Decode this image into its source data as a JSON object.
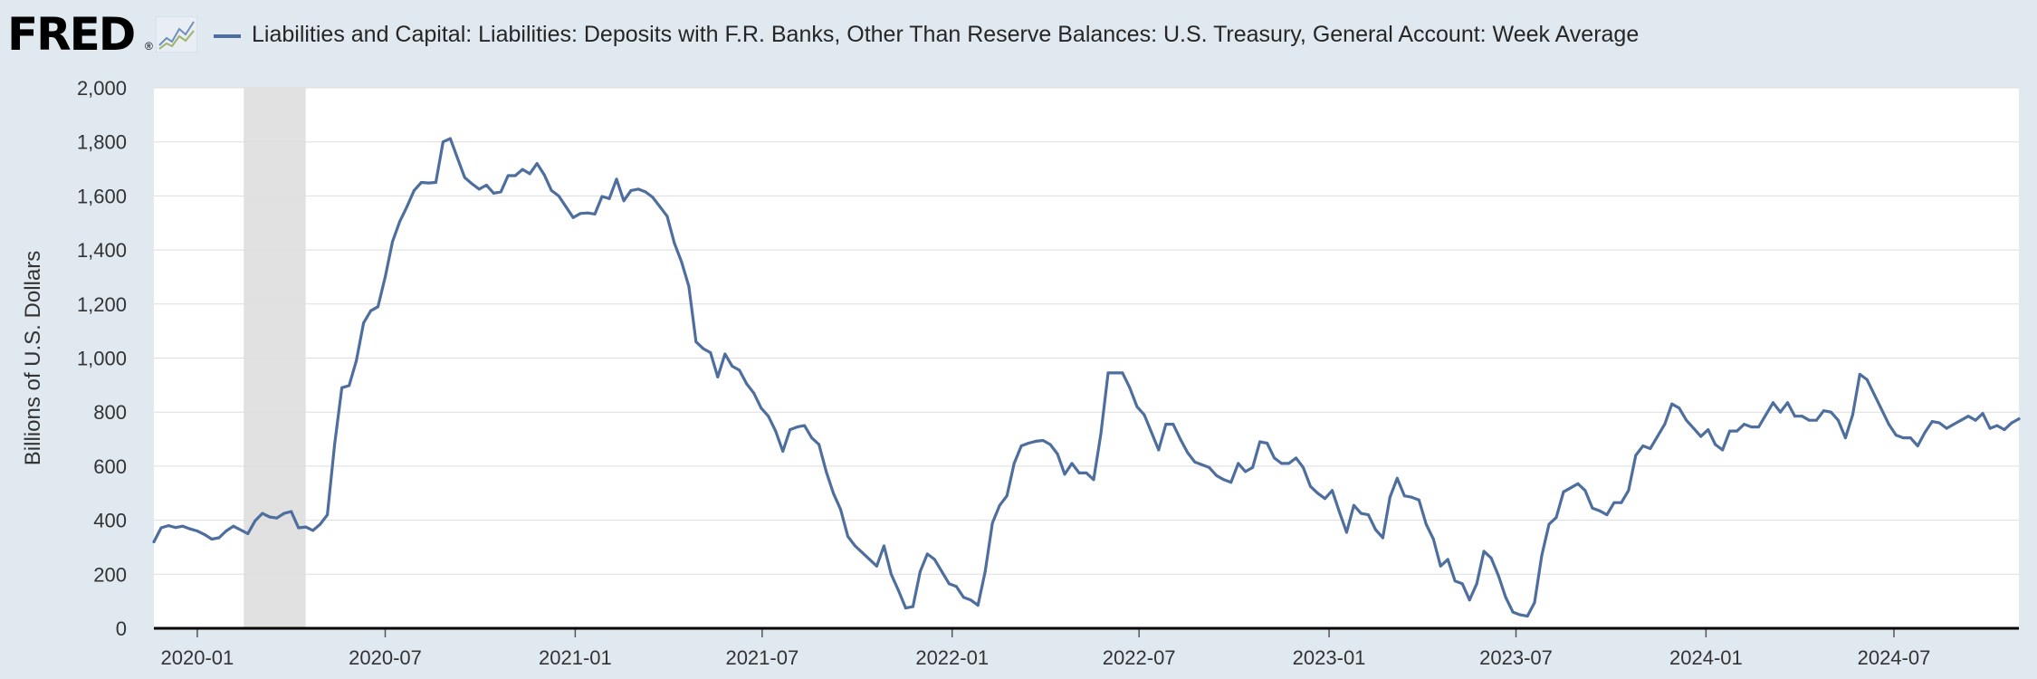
{
  "brand": {
    "logo_text": "FRED",
    "registered_mark": "®",
    "icon": "line-chart-icon"
  },
  "colors": {
    "series": "#4e6e9e",
    "background": "#e1e9f0",
    "plot": "#ffffff",
    "recession": "#e1e1e1",
    "grid": "#dddddd",
    "axis": "#000000",
    "text": "#333333"
  },
  "chart_data": {
    "type": "line",
    "title": "",
    "xlabel": "",
    "ylabel": "Billions of U.S. Dollars",
    "ylim": [
      0,
      2000
    ],
    "xlim": [
      "2019-11-20",
      "2024-10-30"
    ],
    "grid": true,
    "yticks": [
      "0",
      "200",
      "400",
      "600",
      "800",
      "1,000",
      "1,200",
      "1,400",
      "1,600",
      "1,800",
      "2,000"
    ],
    "xticks": [
      "2020-01",
      "2020-07",
      "2021-01",
      "2021-07",
      "2022-01",
      "2022-07",
      "2023-01",
      "2023-07",
      "2024-01",
      "2024-07"
    ],
    "legend_position": "top-left",
    "shaded_regions": [
      {
        "start": "2020-02-15",
        "end": "2020-04-15"
      }
    ],
    "series": [
      {
        "name": "Liabilities and Capital: Liabilities: Deposits with F.R. Banks, Other Than Reserve Balances: U.S. Treasury, General Account: Week Average",
        "color": "#4e6e9e",
        "points": [
          [
            "2019-11-20",
            320
          ],
          [
            "2019-11-27",
            372
          ],
          [
            "2019-12-04",
            380
          ],
          [
            "2019-12-11",
            373
          ],
          [
            "2019-12-18",
            378
          ],
          [
            "2019-12-25",
            368
          ],
          [
            "2020-01-01",
            360
          ],
          [
            "2020-01-08",
            347
          ],
          [
            "2020-01-15",
            330
          ],
          [
            "2020-01-22",
            335
          ],
          [
            "2020-01-29",
            360
          ],
          [
            "2020-02-05",
            378
          ],
          [
            "2020-02-19",
            350
          ],
          [
            "2020-02-26",
            398
          ],
          [
            "2020-03-04",
            425
          ],
          [
            "2020-03-11",
            412
          ],
          [
            "2020-03-18",
            408
          ],
          [
            "2020-03-25",
            425
          ],
          [
            "2020-04-01",
            432
          ],
          [
            "2020-04-08",
            372
          ],
          [
            "2020-04-15",
            375
          ],
          [
            "2020-04-22",
            362
          ],
          [
            "2020-04-29",
            385
          ],
          [
            "2020-05-06",
            420
          ],
          [
            "2020-05-13",
            680
          ],
          [
            "2020-05-20",
            890
          ],
          [
            "2020-05-27",
            898
          ],
          [
            "2020-06-03",
            990
          ],
          [
            "2020-06-10",
            1130
          ],
          [
            "2020-06-17",
            1175
          ],
          [
            "2020-06-24",
            1190
          ],
          [
            "2020-07-01",
            1300
          ],
          [
            "2020-07-08",
            1430
          ],
          [
            "2020-07-15",
            1505
          ],
          [
            "2020-07-22",
            1560
          ],
          [
            "2020-07-29",
            1620
          ],
          [
            "2020-08-05",
            1650
          ],
          [
            "2020-08-12",
            1648
          ],
          [
            "2020-08-19",
            1650
          ],
          [
            "2020-08-26",
            1800
          ],
          [
            "2020-09-02",
            1812
          ],
          [
            "2020-09-09",
            1740
          ],
          [
            "2020-09-16",
            1668
          ],
          [
            "2020-09-23",
            1645
          ],
          [
            "2020-09-30",
            1625
          ],
          [
            "2020-10-07",
            1640
          ],
          [
            "2020-10-14",
            1610
          ],
          [
            "2020-10-21",
            1615
          ],
          [
            "2020-10-28",
            1675
          ],
          [
            "2020-11-04",
            1675
          ],
          [
            "2020-11-11",
            1698
          ],
          [
            "2020-11-18",
            1682
          ],
          [
            "2020-11-25",
            1720
          ],
          [
            "2020-12-02",
            1678
          ],
          [
            "2020-12-09",
            1620
          ],
          [
            "2020-12-16",
            1600
          ],
          [
            "2020-12-23",
            1560
          ],
          [
            "2020-12-30",
            1520
          ],
          [
            "2021-01-06",
            1535
          ],
          [
            "2021-01-13",
            1537
          ],
          [
            "2021-01-20",
            1533
          ],
          [
            "2021-01-27",
            1598
          ],
          [
            "2021-02-03",
            1590
          ],
          [
            "2021-02-10",
            1662
          ],
          [
            "2021-02-17",
            1582
          ],
          [
            "2021-02-24",
            1620
          ],
          [
            "2021-03-03",
            1625
          ],
          [
            "2021-03-10",
            1615
          ],
          [
            "2021-03-17",
            1595
          ],
          [
            "2021-03-24",
            1560
          ],
          [
            "2021-03-31",
            1525
          ],
          [
            "2021-04-07",
            1425
          ],
          [
            "2021-04-14",
            1355
          ],
          [
            "2021-04-21",
            1265
          ],
          [
            "2021-04-28",
            1060
          ],
          [
            "2021-05-05",
            1035
          ],
          [
            "2021-05-12",
            1020
          ],
          [
            "2021-05-19",
            930
          ],
          [
            "2021-05-26",
            1015
          ],
          [
            "2021-06-02",
            970
          ],
          [
            "2021-06-09",
            955
          ],
          [
            "2021-06-16",
            905
          ],
          [
            "2021-06-23",
            870
          ],
          [
            "2021-06-30",
            815
          ],
          [
            "2021-07-07",
            785
          ],
          [
            "2021-07-14",
            730
          ],
          [
            "2021-07-21",
            655
          ],
          [
            "2021-07-28",
            735
          ],
          [
            "2021-08-04",
            745
          ],
          [
            "2021-08-11",
            750
          ],
          [
            "2021-08-18",
            705
          ],
          [
            "2021-08-25",
            680
          ],
          [
            "2021-09-01",
            580
          ],
          [
            "2021-09-08",
            500
          ],
          [
            "2021-09-15",
            440
          ],
          [
            "2021-09-22",
            340
          ],
          [
            "2021-09-29",
            305
          ],
          [
            "2021-10-06",
            280
          ],
          [
            "2021-10-13",
            255
          ],
          [
            "2021-10-20",
            230
          ],
          [
            "2021-10-27",
            305
          ],
          [
            "2021-11-03",
            200
          ],
          [
            "2021-11-10",
            140
          ],
          [
            "2021-11-17",
            75
          ],
          [
            "2021-11-24",
            80
          ],
          [
            "2021-12-01",
            210
          ],
          [
            "2021-12-08",
            275
          ],
          [
            "2021-12-15",
            255
          ],
          [
            "2021-12-22",
            210
          ],
          [
            "2021-12-29",
            165
          ],
          [
            "2022-01-05",
            155
          ],
          [
            "2022-01-12",
            115
          ],
          [
            "2022-01-19",
            105
          ],
          [
            "2022-01-26",
            85
          ],
          [
            "2022-02-02",
            210
          ],
          [
            "2022-02-09",
            390
          ],
          [
            "2022-02-16",
            455
          ],
          [
            "2022-02-23",
            490
          ],
          [
            "2022-03-02",
            610
          ],
          [
            "2022-03-09",
            675
          ],
          [
            "2022-03-16",
            685
          ],
          [
            "2022-03-23",
            692
          ],
          [
            "2022-03-30",
            695
          ],
          [
            "2022-04-06",
            680
          ],
          [
            "2022-04-13",
            645
          ],
          [
            "2022-04-20",
            570
          ],
          [
            "2022-04-27",
            610
          ],
          [
            "2022-05-04",
            575
          ],
          [
            "2022-05-11",
            575
          ],
          [
            "2022-05-18",
            550
          ],
          [
            "2022-05-25",
            720
          ],
          [
            "2022-06-01",
            945
          ],
          [
            "2022-06-08",
            945
          ],
          [
            "2022-06-15",
            945
          ],
          [
            "2022-06-22",
            890
          ],
          [
            "2022-06-29",
            820
          ],
          [
            "2022-07-06",
            790
          ],
          [
            "2022-07-13",
            725
          ],
          [
            "2022-07-20",
            660
          ],
          [
            "2022-07-27",
            755
          ],
          [
            "2022-08-03",
            755
          ],
          [
            "2022-08-10",
            700
          ],
          [
            "2022-08-17",
            650
          ],
          [
            "2022-08-24",
            615
          ],
          [
            "2022-08-31",
            605
          ],
          [
            "2022-09-07",
            595
          ],
          [
            "2022-09-14",
            565
          ],
          [
            "2022-09-21",
            550
          ],
          [
            "2022-09-28",
            540
          ],
          [
            "2022-10-05",
            610
          ],
          [
            "2022-10-12",
            580
          ],
          [
            "2022-10-19",
            595
          ],
          [
            "2022-10-26",
            690
          ],
          [
            "2022-11-02",
            685
          ],
          [
            "2022-11-09",
            630
          ],
          [
            "2022-11-16",
            610
          ],
          [
            "2022-11-23",
            610
          ],
          [
            "2022-11-30",
            630
          ],
          [
            "2022-12-07",
            595
          ],
          [
            "2022-12-14",
            525
          ],
          [
            "2022-12-21",
            500
          ],
          [
            "2022-12-28",
            480
          ],
          [
            "2023-01-04",
            510
          ],
          [
            "2023-01-11",
            430
          ],
          [
            "2023-01-18",
            355
          ],
          [
            "2023-01-25",
            455
          ],
          [
            "2023-02-01",
            425
          ],
          [
            "2023-02-08",
            420
          ],
          [
            "2023-02-15",
            365
          ],
          [
            "2023-02-22",
            335
          ],
          [
            "2023-03-01",
            485
          ],
          [
            "2023-03-08",
            555
          ],
          [
            "2023-03-15",
            490
          ],
          [
            "2023-03-22",
            485
          ],
          [
            "2023-03-29",
            475
          ],
          [
            "2023-04-05",
            385
          ],
          [
            "2023-04-12",
            330
          ],
          [
            "2023-04-19",
            230
          ],
          [
            "2023-04-26",
            255
          ],
          [
            "2023-05-03",
            175
          ],
          [
            "2023-05-10",
            165
          ],
          [
            "2023-05-17",
            105
          ],
          [
            "2023-05-24",
            165
          ],
          [
            "2023-05-31",
            285
          ],
          [
            "2023-06-07",
            260
          ],
          [
            "2023-06-14",
            195
          ],
          [
            "2023-06-21",
            115
          ],
          [
            "2023-06-28",
            60
          ],
          [
            "2023-07-05",
            50
          ],
          [
            "2023-07-12",
            45
          ],
          [
            "2023-07-19",
            95
          ],
          [
            "2023-07-26",
            270
          ],
          [
            "2023-08-02",
            385
          ],
          [
            "2023-08-09",
            410
          ],
          [
            "2023-08-16",
            505
          ],
          [
            "2023-08-23",
            520
          ],
          [
            "2023-08-30",
            535
          ],
          [
            "2023-09-06",
            510
          ],
          [
            "2023-09-13",
            445
          ],
          [
            "2023-09-20",
            435
          ],
          [
            "2023-09-27",
            420
          ],
          [
            "2023-10-04",
            465
          ],
          [
            "2023-10-11",
            465
          ],
          [
            "2023-10-18",
            510
          ],
          [
            "2023-10-25",
            640
          ],
          [
            "2023-11-01",
            675
          ],
          [
            "2023-11-08",
            665
          ],
          [
            "2023-11-15",
            710
          ],
          [
            "2023-11-22",
            755
          ],
          [
            "2023-11-29",
            830
          ],
          [
            "2023-12-06",
            815
          ],
          [
            "2023-12-13",
            770
          ],
          [
            "2023-12-20",
            740
          ],
          [
            "2023-12-27",
            710
          ],
          [
            "2024-01-03",
            735
          ],
          [
            "2024-01-10",
            680
          ],
          [
            "2024-01-17",
            660
          ],
          [
            "2024-01-24",
            730
          ],
          [
            "2024-01-31",
            730
          ],
          [
            "2024-02-07",
            755
          ],
          [
            "2024-02-14",
            745
          ],
          [
            "2024-02-21",
            745
          ],
          [
            "2024-02-28",
            790
          ],
          [
            "2024-03-06",
            835
          ],
          [
            "2024-03-13",
            800
          ],
          [
            "2024-03-20",
            835
          ],
          [
            "2024-03-27",
            785
          ],
          [
            "2024-04-03",
            785
          ],
          [
            "2024-04-10",
            770
          ],
          [
            "2024-04-17",
            770
          ],
          [
            "2024-04-24",
            805
          ],
          [
            "2024-05-01",
            800
          ],
          [
            "2024-05-08",
            770
          ],
          [
            "2024-05-15",
            705
          ],
          [
            "2024-05-22",
            790
          ],
          [
            "2024-05-29",
            940
          ],
          [
            "2024-06-05",
            920
          ],
          [
            "2024-06-12",
            865
          ],
          [
            "2024-06-19",
            810
          ],
          [
            "2024-06-26",
            755
          ],
          [
            "2024-07-03",
            715
          ],
          [
            "2024-07-10",
            705
          ],
          [
            "2024-07-17",
            705
          ],
          [
            "2024-07-24",
            675
          ],
          [
            "2024-07-31",
            725
          ],
          [
            "2024-08-07",
            765
          ],
          [
            "2024-08-14",
            760
          ],
          [
            "2024-08-21",
            740
          ],
          [
            "2024-08-28",
            755
          ],
          [
            "2024-09-04",
            770
          ],
          [
            "2024-09-11",
            785
          ],
          [
            "2024-09-18",
            770
          ],
          [
            "2024-09-25",
            795
          ],
          [
            "2024-10-02",
            740
          ],
          [
            "2024-10-09",
            750
          ],
          [
            "2024-10-16",
            735
          ],
          [
            "2024-10-23",
            760
          ],
          [
            "2024-10-30",
            775
          ]
        ]
      }
    ]
  }
}
